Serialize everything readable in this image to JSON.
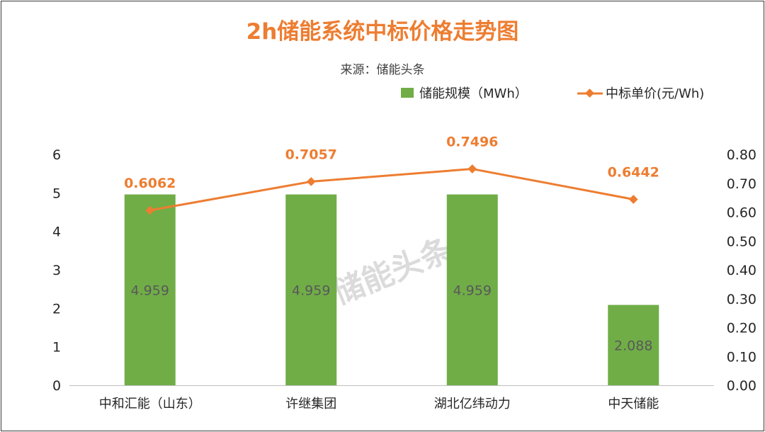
{
  "chart_data": {
    "type": "bar",
    "title": "2h储能系统中标价格走势图",
    "subtitle": "来源：储能头条",
    "categories": [
      "中和汇能（山东）",
      "许继集团",
      "湖北亿纬动力",
      "中天储能"
    ],
    "series": [
      {
        "name": "储能规模（MWh）",
        "type": "bar",
        "axis": "left",
        "color": "#70AD47",
        "values": [
          4.959,
          4.959,
          4.959,
          2.088
        ],
        "labels": [
          "4.959",
          "4.959",
          "4.959",
          "2.088"
        ]
      },
      {
        "name": "中标单价(元/Wh)",
        "type": "line",
        "axis": "right",
        "color": "#ED7D31",
        "values": [
          0.6062,
          0.7057,
          0.7496,
          0.6442
        ],
        "labels": [
          "0.6062",
          "0.7057",
          "0.7496",
          "0.6442"
        ]
      }
    ],
    "y_left": {
      "min": 0,
      "max": 6,
      "ticks": [
        "0",
        "1",
        "2",
        "3",
        "4",
        "5",
        "6"
      ]
    },
    "y_right": {
      "min": 0,
      "max": 0.8,
      "ticks": [
        "0.00",
        "0.10",
        "0.20",
        "0.30",
        "0.40",
        "0.50",
        "0.60",
        "0.70",
        "0.80"
      ]
    },
    "legend_position": "top-right",
    "grid": false,
    "watermark": "储能头条"
  }
}
